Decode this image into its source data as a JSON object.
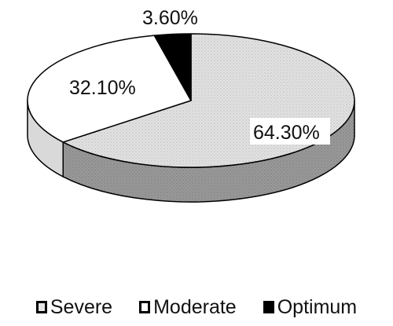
{
  "chart_data": {
    "type": "pie",
    "title": "",
    "categories": [
      "Severe",
      "Moderate",
      "Optimum"
    ],
    "values": [
      64.3,
      32.1,
      3.6
    ],
    "value_labels": [
      "64.30%",
      "32.10%",
      "3.60%"
    ],
    "colors": [
      "#e4e4e4",
      "#ffffff",
      "#000000"
    ],
    "legend": {
      "position": "bottom",
      "items": [
        {
          "label": "Severe",
          "color": "#e4e4e4"
        },
        {
          "label": "Moderate",
          "color": "#ffffff"
        },
        {
          "label": "Optimum",
          "color": "#000000"
        }
      ]
    },
    "style": "3d-pie"
  }
}
